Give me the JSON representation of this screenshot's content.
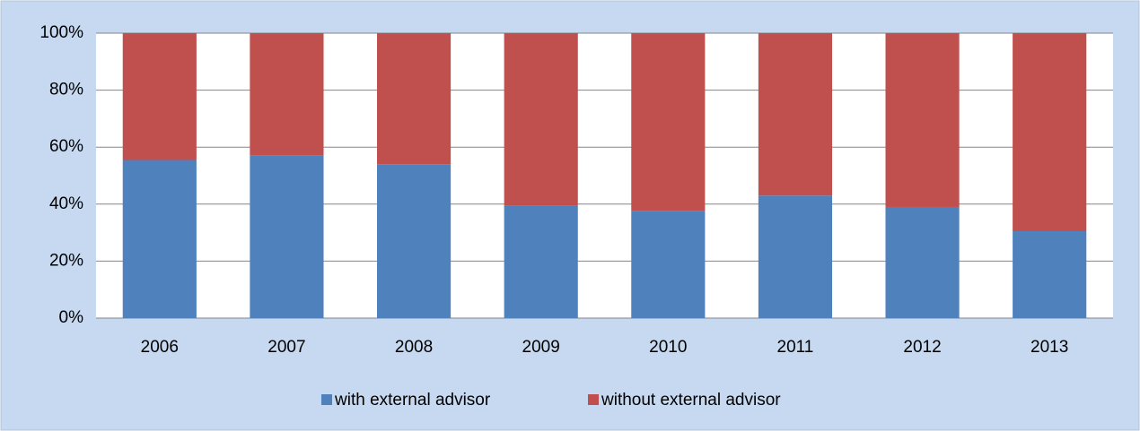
{
  "chart_data": {
    "type": "stacked_bar",
    "categories": [
      "2006",
      "2007",
      "2008",
      "2009",
      "2010",
      "2011",
      "2012",
      "2013"
    ],
    "series": [
      {
        "name": "with external advisor",
        "color": "#4f81bd",
        "values": [
          55.5,
          57,
          54,
          39.5,
          37.5,
          43,
          39,
          30.5
        ]
      },
      {
        "name": "without external advisor",
        "color": "#c0504d",
        "values": [
          44.5,
          43,
          46,
          60.5,
          62.5,
          57,
          61,
          69.5
        ]
      }
    ],
    "ylim": [
      0,
      100
    ],
    "yticks": [
      {
        "value": 0,
        "label": "0%"
      },
      {
        "value": 20,
        "label": "20%"
      },
      {
        "value": 40,
        "label": "40%"
      },
      {
        "value": 60,
        "label": "60%"
      },
      {
        "value": 80,
        "label": "80%"
      },
      {
        "value": 100,
        "label": "100%"
      }
    ],
    "grid": true,
    "legend": "bottom"
  }
}
